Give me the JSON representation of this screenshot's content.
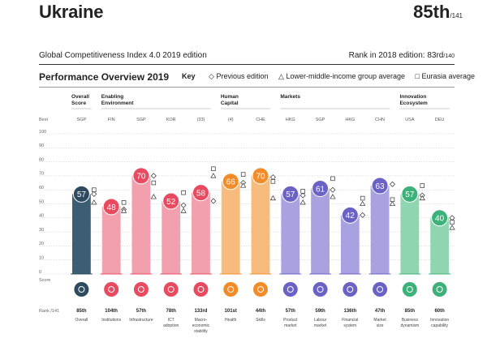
{
  "header": {
    "country": "Ukraine",
    "rank": "85th",
    "rank_total": "/141",
    "edition": "Global Competitiveness Index 4.0 2019 edition",
    "rank_2018_label": "Rank in 2018 edition: 83rd",
    "rank_2018_total": "/140"
  },
  "panel": {
    "title": "Performance Overview 2019",
    "key_label": "Key",
    "key_items": [
      "Previous edition",
      "Lower-middle-income group average",
      "Eurasia average"
    ]
  },
  "axis": {
    "best_label": "Best",
    "score_label": "Score",
    "rank_label": "Rank /141",
    "ticks": [
      "100",
      "90",
      "80",
      "70",
      "60",
      "50",
      "40",
      "30",
      "20",
      "10",
      "0"
    ]
  },
  "groups": [
    {
      "label": [
        "Overall",
        "Score"
      ],
      "start": 0,
      "end": 0
    },
    {
      "label": [
        "Enabling",
        "Environment"
      ],
      "start": 1,
      "end": 4
    },
    {
      "label": [
        "Human",
        "Capital"
      ],
      "start": 5,
      "end": 6
    },
    {
      "label": [
        "Markets",
        ""
      ],
      "start": 7,
      "end": 10
    },
    {
      "label": [
        "Innovation",
        "Ecosystem"
      ],
      "start": 11,
      "end": 12
    }
  ],
  "chart_data": {
    "type": "bar",
    "ylim": [
      0,
      100
    ],
    "categories": [
      [
        "Overall"
      ],
      [
        "Institutions"
      ],
      [
        "Infrastructure"
      ],
      [
        "ICT",
        "adoption"
      ],
      [
        "Macro-",
        "economic",
        "stability"
      ],
      [
        "Health"
      ],
      [
        "Skills"
      ],
      [
        "Product",
        "market"
      ],
      [
        "Labour",
        "market"
      ],
      [
        "Financial",
        "system"
      ],
      [
        "Market",
        "size"
      ],
      [
        "Business",
        "dynamism"
      ],
      [
        "Innovation",
        "capability"
      ]
    ],
    "best": [
      "SGP",
      "FIN",
      "SGP",
      "KOR",
      "(33)",
      "(4)",
      "CHE",
      "HKG",
      "SGP",
      "HKG",
      "CHN",
      "USA",
      "DEU"
    ],
    "values": [
      57,
      48,
      70,
      52,
      58,
      66,
      70,
      57,
      61,
      42,
      63,
      57,
      40
    ],
    "ranks": [
      "85th",
      "104th",
      "57th",
      "78th",
      "133rd",
      "101st",
      "44th",
      "57th",
      "59th",
      "136th",
      "47th",
      "85th",
      "60th"
    ],
    "previous_edition": [
      57,
      46,
      70,
      49,
      52,
      65,
      69,
      56,
      60,
      42,
      64,
      56,
      40
    ],
    "lower_middle_income_avg": [
      51,
      45,
      55,
      45,
      70,
      63,
      54,
      51,
      55,
      50,
      50,
      54,
      33
    ],
    "eurasia_avg": [
      60,
      51,
      65,
      58,
      75,
      71,
      66,
      59,
      68,
      54,
      53,
      63,
      37
    ],
    "colors": [
      "#2e4a5e",
      "#e84a5f",
      "#e84a5f",
      "#e84a5f",
      "#e84a5f",
      "#f28c28",
      "#f28c28",
      "#6a62c4",
      "#6a62c4",
      "#6a62c4",
      "#6a62c4",
      "#3db17a",
      "#3db17a"
    ],
    "bar_fills": [
      "#3c5d72",
      "#f2a0ae",
      "#f2a0ae",
      "#f2a0ae",
      "#f2a0ae",
      "#f7bb7e",
      "#f7bb7e",
      "#a8a3e0",
      "#a8a3e0",
      "#a8a3e0",
      "#a8a3e0",
      "#8fd6b0",
      "#8fd6b0"
    ],
    "icons": [
      "award-icon",
      "gavel-icon",
      "building-icon",
      "chip-icon",
      "scale-icon",
      "heart-icon",
      "graduation-icon",
      "tag-icon",
      "people-icon",
      "card-icon",
      "chart-icon",
      "handshake-icon",
      "lightbulb-icon"
    ]
  }
}
